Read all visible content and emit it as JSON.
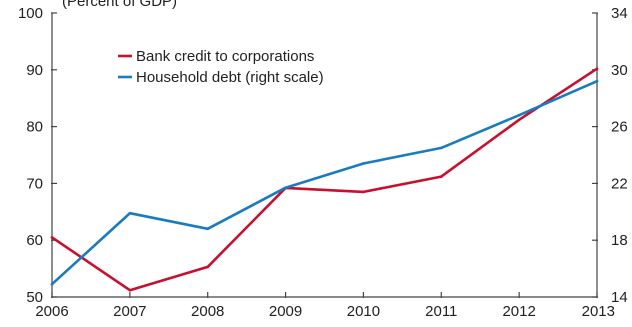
{
  "chart_data": {
    "type": "line",
    "title": "",
    "title_fragment": "(Percent of GDP)",
    "x": [
      2006,
      2007,
      2008,
      2009,
      2010,
      2011,
      2012,
      2013
    ],
    "x_tick_labels": [
      "2006",
      "2007",
      "2008",
      "2009",
      "2010",
      "2011",
      "2012",
      "2013"
    ],
    "y_left": {
      "ylim": [
        50,
        100
      ],
      "ticks": [
        50,
        60,
        70,
        80,
        90,
        100
      ]
    },
    "y_right": {
      "ylim": [
        14,
        34
      ],
      "ticks": [
        14,
        18,
        22,
        26,
        30,
        34
      ]
    },
    "grid": false,
    "legend_position": "top-left",
    "series": [
      {
        "name": "Bank credit to corporations",
        "axis": "left",
        "color": "#c8102e",
        "values": [
          60.5,
          51.2,
          55.3,
          69.2,
          68.5,
          71.2,
          81.2,
          90.2
        ]
      },
      {
        "name": "Household debt (right scale)",
        "axis": "right",
        "color": "#1a7bbf",
        "values": [
          14.9,
          19.9,
          18.8,
          21.7,
          23.4,
          24.5,
          26.8,
          29.2
        ]
      }
    ]
  }
}
